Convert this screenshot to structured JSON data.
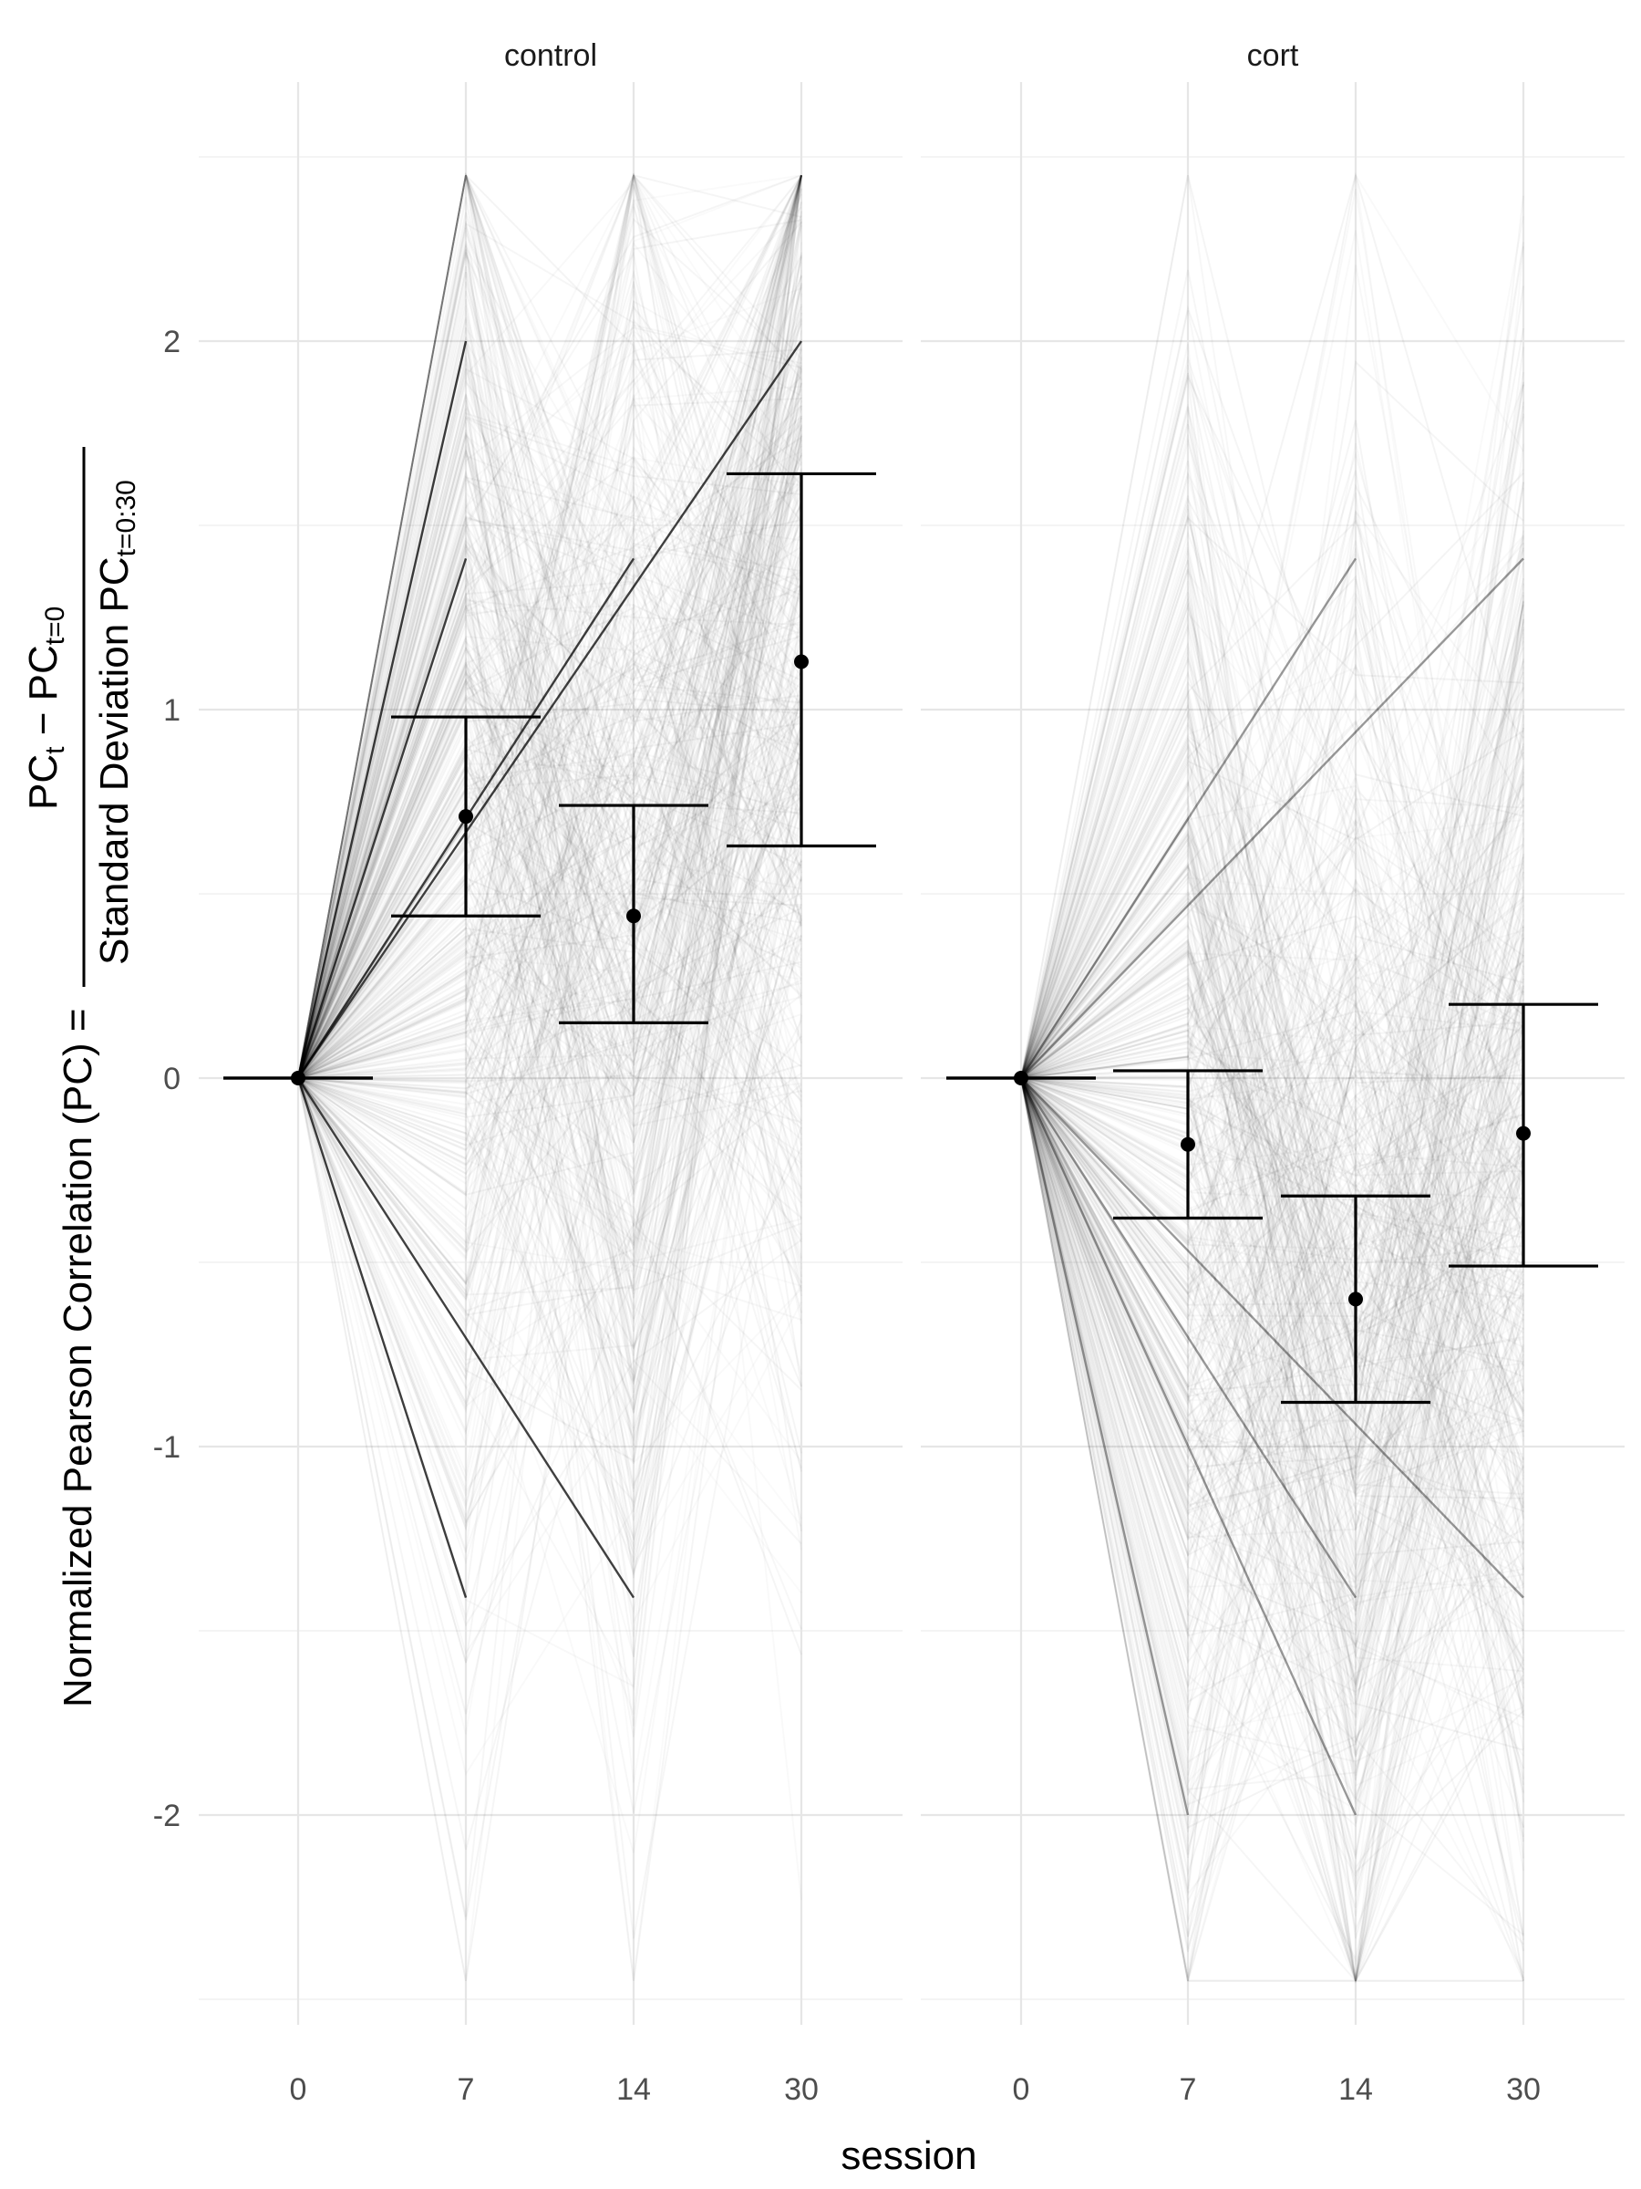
{
  "chart_data": {
    "type": "line",
    "facets": [
      "control",
      "cort"
    ],
    "x": [
      0,
      7,
      14,
      30
    ],
    "x_tick_labels": [
      "0",
      "7",
      "14",
      "30"
    ],
    "xlabel": "session",
    "ylabel": "Normalized Pearson Correlation (PC) =",
    "ylabel_fraction": {
      "numerator": "PC_t − PC_t=0",
      "denominator": "Standard Deviation PC_t=0:30"
    },
    "ylim": [
      -2.6,
      2.6
    ],
    "y_ticks": [
      -2,
      -1,
      0,
      1,
      2
    ],
    "y_tick_labels": [
      "-2",
      "-1",
      "0",
      "1",
      "2"
    ],
    "grid": true,
    "series": [
      {
        "panel": "control",
        "mean": [
          0,
          0.71,
          0.44,
          1.13
        ],
        "lower": [
          0,
          0.44,
          0.15,
          0.63
        ],
        "upper": [
          0,
          0.98,
          0.74,
          1.64
        ]
      },
      {
        "panel": "cort",
        "mean": [
          0,
          -0.18,
          -0.6,
          -0.15
        ],
        "lower": [
          0,
          -0.38,
          -0.88,
          -0.51
        ],
        "upper": [
          0,
          0.02,
          -0.32,
          0.2
        ]
      }
    ],
    "individual_traces": "hundreds of faint grey per-subject lines across sessions"
  },
  "labels": {
    "ylabel_left": "Normalized Pearson Correlation (PC) =",
    "num_a": "PC",
    "num_a_sub": "t",
    "num_minus": " − PC",
    "num_b_sub": "t=0",
    "den_main": "Standard Deviation PC",
    "den_sub": "t=0:30"
  }
}
